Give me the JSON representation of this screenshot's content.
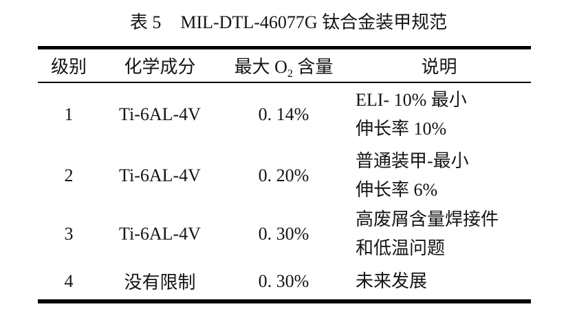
{
  "title": {
    "prefix": "表 5",
    "main": "MIL-DTL-46077G 钛合金装甲规范"
  },
  "table": {
    "headers": {
      "grade": "级别",
      "composition": "化学成分",
      "max_o2": {
        "pre": "最大 O",
        "sub": "2",
        "post": " 含量"
      },
      "description": "说明"
    },
    "rows": [
      {
        "grade": "1",
        "composition": "Ti-6AL-4V",
        "max_o2": "0. 14%",
        "desc1": "ELI- 10% 最小",
        "desc2": "伸长率 10%"
      },
      {
        "grade": "2",
        "composition": "Ti-6AL-4V",
        "max_o2": "0. 20%",
        "desc1": "普通装甲-最小",
        "desc2": "伸长率 6%"
      },
      {
        "grade": "3",
        "composition": "Ti-6AL-4V",
        "max_o2": "0. 30%",
        "desc1": "高废屑含量焊接件",
        "desc2": "和低温问题"
      },
      {
        "grade": "4",
        "composition": "没有限制",
        "max_o2": "0. 30%",
        "desc1": "未来发展",
        "desc2": ""
      }
    ],
    "text_color": "#141414",
    "rule_color": "#000000"
  }
}
